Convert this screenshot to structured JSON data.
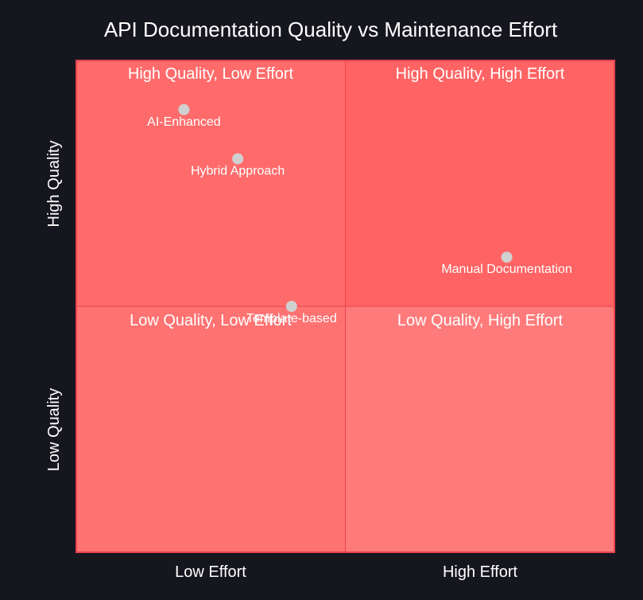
{
  "chart_data": {
    "type": "scatter",
    "title": "API Documentation Quality vs Maintenance Effort",
    "quadrants": {
      "top_left": "High Quality, Low Effort",
      "top_right": "High Quality, High Effort",
      "bottom_left": "Low Quality, Low Effort",
      "bottom_right": "Low Quality, High Effort"
    },
    "x_axis": {
      "low_label": "Low Effort",
      "high_label": "High Effort",
      "range": [
        0,
        1
      ]
    },
    "y_axis": {
      "high_label": "High Quality",
      "low_label": "Low Quality",
      "range": [
        0,
        1
      ]
    },
    "points": [
      {
        "label": "AI-Enhanced",
        "x": 0.2,
        "y": 0.9
      },
      {
        "label": "Hybrid Approach",
        "x": 0.3,
        "y": 0.8
      },
      {
        "label": "Manual Documentation",
        "x": 0.8,
        "y": 0.6
      },
      {
        "label": "Template-based",
        "x": 0.4,
        "y": 0.5
      }
    ],
    "colors": {
      "background": "#16161f",
      "quadrant_top_left": "#ff6b6b",
      "quadrant_top_right": "#ff6363",
      "quadrant_bottom_left": "#ff7272",
      "quadrant_bottom_right": "#ff7b7b",
      "border": "#e8434f",
      "point": "#d0d0d0",
      "text": "#ffffff"
    }
  }
}
